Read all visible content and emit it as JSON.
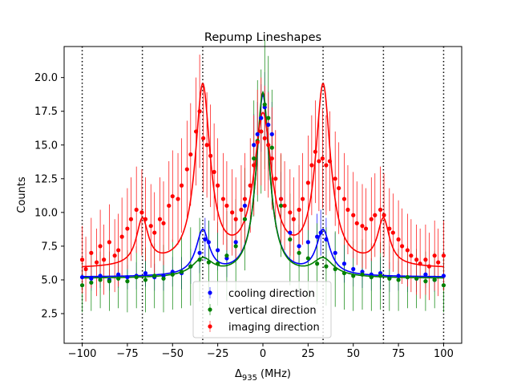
{
  "chart_data": {
    "type": "scatter",
    "title": "Repump Lineshapes",
    "xlabel_symbol": "Δ",
    "xlabel_subscript": "935",
    "xlabel_unit": "(MHz)",
    "ylabel": "Counts",
    "xlim": [
      -110,
      110
    ],
    "ylim": [
      0.3,
      22.3
    ],
    "xticks": [
      -100,
      -75,
      -50,
      -25,
      0,
      25,
      50,
      75,
      100
    ],
    "xtick_labels": [
      "−100",
      "−75",
      "−50",
      "−25",
      "0",
      "25",
      "50",
      "75",
      "100"
    ],
    "yticks": [
      2.5,
      5.0,
      7.5,
      10.0,
      12.5,
      15.0,
      17.5,
      20.0
    ],
    "ytick_labels": [
      "2.5",
      "5.0",
      "7.5",
      "10.0",
      "12.5",
      "15.0",
      "17.5",
      "20.0"
    ],
    "vlines": [
      -100,
      -66.7,
      -33.3,
      33.3,
      66.7,
      100
    ],
    "legend_location": "lower-center",
    "series": [
      {
        "name": "cooling direction",
        "color": "#0000ff",
        "x": [
          -100,
          -95,
          -90,
          -85,
          -80,
          -75,
          -70,
          -65,
          -60,
          -55,
          -50,
          -45,
          -40,
          -35,
          -32,
          -30,
          -25,
          -20,
          -15,
          -10,
          -5,
          -3,
          -1,
          1,
          3,
          5,
          10,
          15,
          20,
          25,
          30,
          32,
          35,
          40,
          45,
          50,
          55,
          60,
          65,
          70,
          75,
          80,
          85,
          90,
          95,
          100
        ],
        "y": [
          5.2,
          5.1,
          5.3,
          5.0,
          5.4,
          5.2,
          5.3,
          5.5,
          5.2,
          5.3,
          5.6,
          5.5,
          6.0,
          7.0,
          8.0,
          7.8,
          7.2,
          6.6,
          7.8,
          10.5,
          15.0,
          15.8,
          17.0,
          17.8,
          16.5,
          15.8,
          11.0,
          8.5,
          7.5,
          7.8,
          8.2,
          8.5,
          8.0,
          7.0,
          6.2,
          5.8,
          5.6,
          5.4,
          5.5,
          5.2,
          5.3,
          5.2,
          5.1,
          5.4,
          5.0,
          5.3
        ],
        "errors": [
          0.8,
          0.9,
          0.9,
          0.8,
          1.0,
          0.9,
          1.0,
          1.0,
          1.0,
          1.1,
          1.1,
          1.2,
          1.3,
          1.5,
          1.6,
          1.6,
          1.5,
          1.4,
          1.6,
          1.9,
          2.3,
          2.4,
          2.5,
          2.6,
          2.5,
          2.4,
          2.0,
          1.7,
          1.6,
          1.6,
          1.7,
          1.7,
          1.6,
          1.5,
          1.4,
          1.3,
          1.2,
          1.2,
          1.2,
          1.1,
          1.1,
          1.1,
          1.0,
          1.0,
          0.9,
          0.9
        ],
        "fit_peaks": [
          [
            0,
            13.4,
            4.5
          ],
          [
            -33.3,
            3.3,
            4.5
          ],
          [
            33.3,
            3.3,
            4.5
          ]
        ],
        "fit_baseline": 5.2
      },
      {
        "name": "vertical direction",
        "color": "#008000",
        "x": [
          -100,
          -95,
          -90,
          -85,
          -80,
          -75,
          -70,
          -65,
          -60,
          -55,
          -50,
          -45,
          -40,
          -35,
          -30,
          -25,
          -20,
          -15,
          -10,
          -5,
          -3,
          -1,
          1,
          3,
          5,
          10,
          15,
          20,
          25,
          30,
          35,
          40,
          45,
          50,
          55,
          60,
          65,
          70,
          75,
          80,
          85,
          90,
          95,
          100
        ],
        "y": [
          4.6,
          4.8,
          5.0,
          4.9,
          5.1,
          4.9,
          5.2,
          5.0,
          5.3,
          5.1,
          5.4,
          5.6,
          6.0,
          6.5,
          6.3,
          6.2,
          6.8,
          7.5,
          9.5,
          14.0,
          15.3,
          16.0,
          18.0,
          17.0,
          14.8,
          10.5,
          8.0,
          7.0,
          6.6,
          6.2,
          6.0,
          5.8,
          5.5,
          5.3,
          5.4,
          5.2,
          5.3,
          5.1,
          5.0,
          5.2,
          5.1,
          4.9,
          5.0,
          4.6
        ],
        "errors": [
          2.0,
          2.1,
          2.1,
          2.2,
          2.2,
          2.3,
          2.3,
          2.4,
          2.4,
          2.5,
          2.6,
          2.7,
          2.9,
          3.1,
          3.1,
          3.1,
          3.3,
          3.5,
          3.8,
          4.3,
          4.5,
          4.6,
          4.8,
          4.6,
          4.3,
          3.8,
          3.4,
          3.2,
          3.1,
          3.0,
          2.9,
          2.8,
          2.7,
          2.6,
          2.6,
          2.5,
          2.5,
          2.4,
          2.3,
          2.3,
          2.2,
          2.2,
          2.1,
          2.0
        ],
        "fit_peaks": [
          [
            0,
            13.7,
            4.5
          ],
          [
            -33.3,
            1.3,
            7.0
          ],
          [
            33.3,
            1.3,
            7.0
          ]
        ],
        "fit_baseline": 5.1
      },
      {
        "name": "imaging direction",
        "color": "#ff0000",
        "x": [
          -100,
          -98,
          -95,
          -92,
          -90,
          -88,
          -85,
          -82,
          -80,
          -78,
          -75,
          -73,
          -70,
          -67,
          -65,
          -62,
          -60,
          -57,
          -55,
          -52,
          -50,
          -47,
          -45,
          -42,
          -40,
          -37,
          -35,
          -33,
          -31,
          -29,
          -27,
          -25,
          -22,
          -20,
          -17,
          -15,
          -12,
          -10,
          -7,
          -5,
          -3,
          -1,
          1,
          3,
          5,
          7,
          10,
          12,
          15,
          17,
          20,
          22,
          25,
          27,
          29,
          31,
          33,
          35,
          37,
          40,
          42,
          45,
          47,
          50,
          52,
          55,
          57,
          60,
          62,
          65,
          67,
          70,
          72,
          75,
          77,
          80,
          82,
          85,
          87,
          90,
          92,
          95,
          97,
          100
        ],
        "y": [
          6.5,
          5.8,
          7.0,
          6.3,
          7.5,
          6.5,
          7.8,
          6.8,
          7.2,
          8.2,
          8.8,
          9.5,
          10.2,
          10.0,
          9.5,
          9.0,
          8.5,
          9.5,
          9.2,
          10.5,
          11.2,
          11.0,
          12.0,
          13.2,
          14.3,
          16.0,
          17.5,
          15.5,
          15.0,
          14.2,
          13.0,
          12.0,
          11.0,
          10.5,
          10.0,
          9.5,
          10.2,
          11.0,
          12.0,
          13.5,
          15.2,
          16.0,
          15.5,
          15.0,
          14.0,
          12.5,
          11.0,
          10.5,
          10.0,
          9.5,
          10.2,
          11.0,
          12.2,
          13.5,
          14.5,
          13.8,
          14.0,
          13.5,
          13.8,
          12.5,
          11.8,
          11.0,
          10.2,
          9.8,
          9.2,
          9.0,
          8.8,
          9.5,
          9.8,
          10.2,
          9.8,
          8.8,
          8.5,
          8.0,
          7.5,
          7.2,
          6.8,
          6.5,
          6.2,
          6.5,
          6.0,
          6.8,
          6.3,
          6.8
        ],
        "errors": [
          2.5,
          2.4,
          2.6,
          2.5,
          2.7,
          2.6,
          2.8,
          2.7,
          2.7,
          2.9,
          3.0,
          3.1,
          3.2,
          3.2,
          3.1,
          3.1,
          3.0,
          3.1,
          3.1,
          3.3,
          3.4,
          3.4,
          3.5,
          3.6,
          3.8,
          4.0,
          4.2,
          4.0,
          3.9,
          3.8,
          3.6,
          3.5,
          3.4,
          3.3,
          3.2,
          3.1,
          3.3,
          3.4,
          3.5,
          3.7,
          3.9,
          4.0,
          3.9,
          3.9,
          3.8,
          3.6,
          3.4,
          3.3,
          3.2,
          3.1,
          3.3,
          3.4,
          3.5,
          3.7,
          3.8,
          3.7,
          3.7,
          3.7,
          3.7,
          3.5,
          3.4,
          3.4,
          3.3,
          3.2,
          3.1,
          3.1,
          3.0,
          3.1,
          3.1,
          3.2,
          3.1,
          3.0,
          2.9,
          2.9,
          2.8,
          2.7,
          2.7,
          2.6,
          2.6,
          2.6,
          2.5,
          2.6,
          2.5,
          2.6
        ],
        "fit_peaks": [
          [
            0,
            11.0,
            6.0
          ],
          [
            -33.3,
            13.3,
            5.0
          ],
          [
            33.3,
            13.3,
            5.0
          ],
          [
            -66.7,
            3.4,
            4.0
          ],
          [
            66.7,
            3.4,
            4.0
          ]
        ],
        "fit_baseline": 5.8
      }
    ]
  }
}
